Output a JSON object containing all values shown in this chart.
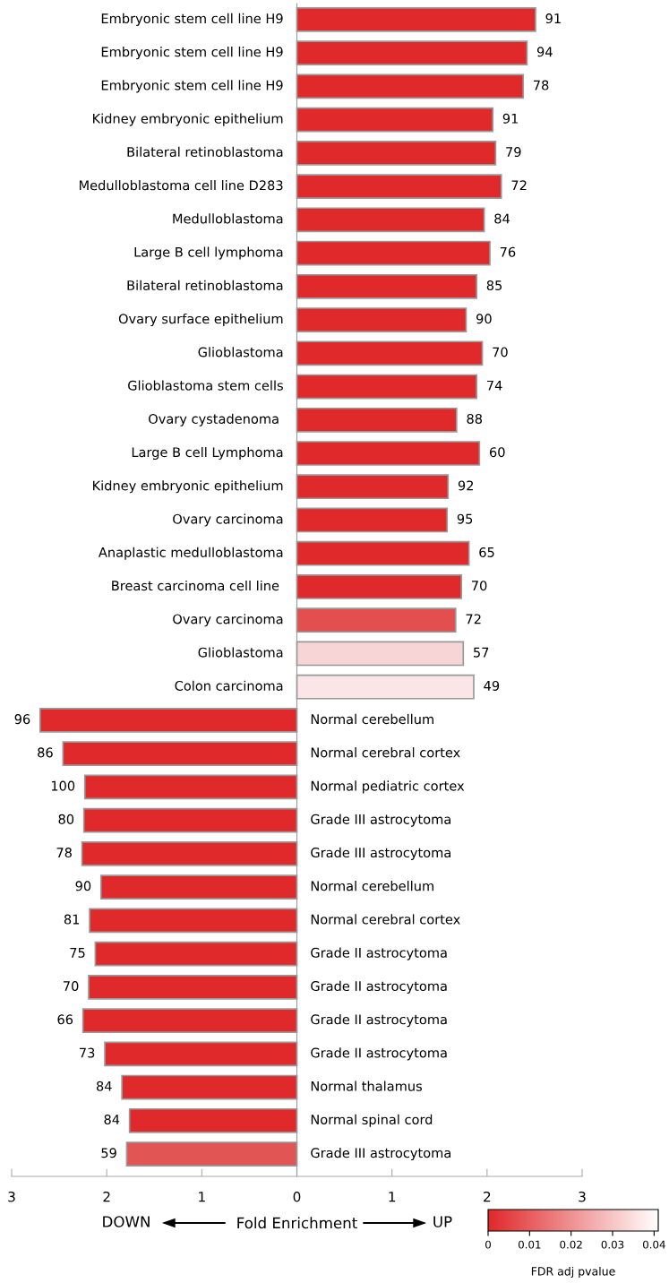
{
  "chart_data": {
    "type": "bar",
    "orientation": "horizontal",
    "xlabel": "Fold Enrichment",
    "clabel": "FDR adj pvalue",
    "clim": [
      0,
      0.041
    ],
    "cticks": [
      0,
      0.01,
      0.02,
      0.03,
      0.04
    ],
    "categories": [
      "Embryonic stem cell line H9",
      "Embryonic stem cell line H9",
      "Embryonic stem cell line H9",
      "Kidney embryonic epithelium",
      "Bilateral retinoblastoma",
      "Medulloblastoma cell line D283",
      "Medulloblastoma",
      "Large B cell lymphoma",
      "Bilateral retinoblastoma",
      "Ovary surface epithelium",
      "Glioblastoma",
      "Glioblastoma stem cells",
      "Ovary cystadenoma ",
      "Large B cell Lymphoma",
      "Kidney embryonic epithelium",
      "Ovary carcinoma",
      "Anaplastic medulloblastoma",
      "Breast carcinoma cell line ",
      "Ovary carcinoma",
      "Glioblastoma",
      "Colon carcinoma",
      "Normal cerebellum",
      "Normal cerebral cortex",
      "Normal pediatric cortex",
      "Grade III astrocytoma",
      "Grade III astrocytoma",
      "Normal cerebellum",
      "Normal cerebral cortex",
      "Grade II astrocytoma",
      "Grade II astrocytoma",
      "Grade II astrocytoma",
      "Grade II astrocytoma",
      "Normal thalamus",
      "Normal spinal cord",
      "Grade III astrocytoma"
    ],
    "values": [
      2.51,
      2.42,
      2.38,
      2.06,
      2.09,
      2.15,
      1.97,
      2.03,
      1.89,
      1.78,
      1.95,
      1.89,
      1.68,
      1.92,
      1.59,
      1.58,
      1.81,
      1.73,
      1.67,
      1.75,
      1.86,
      -2.7,
      -2.46,
      -2.23,
      -2.24,
      -2.26,
      -2.06,
      -2.18,
      -2.12,
      -2.19,
      -2.25,
      -2.02,
      -1.84,
      -1.76,
      -1.79
    ],
    "annotations": [
      "DOWN",
      "UP",
      "91",
      "94",
      "78",
      "91",
      "79",
      "72",
      "84",
      "76",
      "85",
      "90",
      "70",
      "74",
      "88",
      "60",
      "92",
      "95",
      "65",
      "70",
      "72",
      "57",
      "49",
      "96",
      "86",
      "100",
      "80",
      "78",
      "90",
      "81",
      "75",
      "70",
      "66",
      "73",
      "84",
      "84",
      "59"
    ],
    "colors": [
      "#e0292b",
      "#e0292b",
      "#e0292b",
      "#e0292b",
      "#e0292b",
      "#e0292b",
      "#e0292b",
      "#e0292b",
      "#e0292b",
      "#e0292b",
      "#e0292b",
      "#e0292b",
      "#e0292b",
      "#e0292b",
      "#e0292b",
      "#e0292b",
      "#e0292b",
      "#e0292b",
      "#e34e4e",
      "#f7d5d7",
      "#fce5e7",
      "#e0292b",
      "#e0292b",
      "#e0292b",
      "#e0292b",
      "#e0292b",
      "#e0292b",
      "#e0292b",
      "#e0292b",
      "#e0292b",
      "#e0292b",
      "#e0292b",
      "#e0292b",
      "#e0292b",
      "#e25555"
    ],
    "xlim": [
      -3,
      3
    ],
    "xticks": [
      {
        "value": -3,
        "label": "3"
      },
      {
        "value": -2,
        "label": "2"
      },
      {
        "value": -1,
        "label": "1"
      },
      0,
      1,
      2,
      3
    ],
    "grid": false,
    "legend": false
  }
}
